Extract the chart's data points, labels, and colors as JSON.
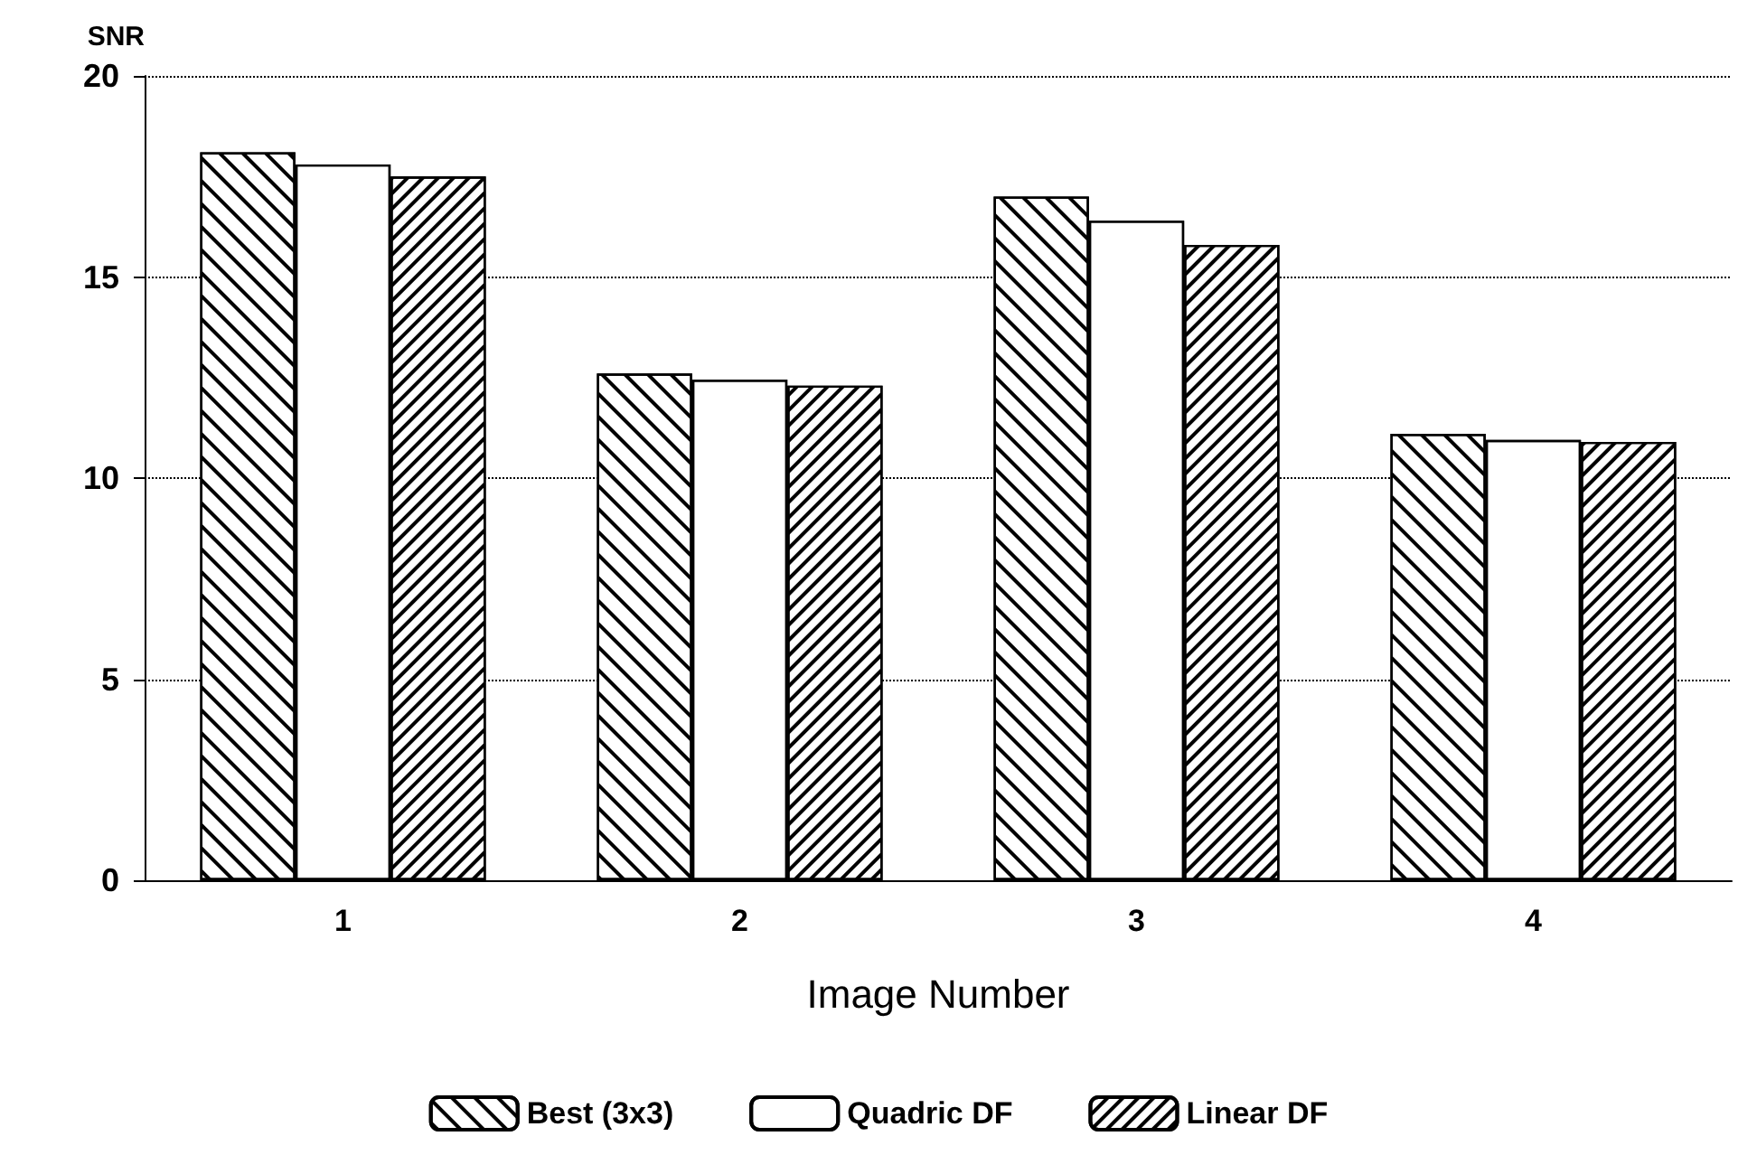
{
  "chart_data": {
    "type": "bar",
    "xlabel": "Image Number",
    "ylabel": "SNR",
    "categories": [
      "1",
      "2",
      "3",
      "4"
    ],
    "series": [
      {
        "name": "Best (3x3)",
        "color": "#ffffff",
        "values": [
          18.1,
          12.6,
          17.0,
          11.1
        ]
      },
      {
        "name": "Quadric DF",
        "color": "#ffffff",
        "values": [
          17.8,
          12.45,
          16.4,
          10.95
        ]
      },
      {
        "name": "Linear DF",
        "color": "#ffffff",
        "values": [
          17.5,
          12.3,
          15.8,
          10.9
        ]
      }
    ],
    "ylim": [
      0,
      20
    ],
    "yticks": [
      0,
      5,
      10,
      15,
      20
    ],
    "grid": "y",
    "legend": "bottom"
  }
}
